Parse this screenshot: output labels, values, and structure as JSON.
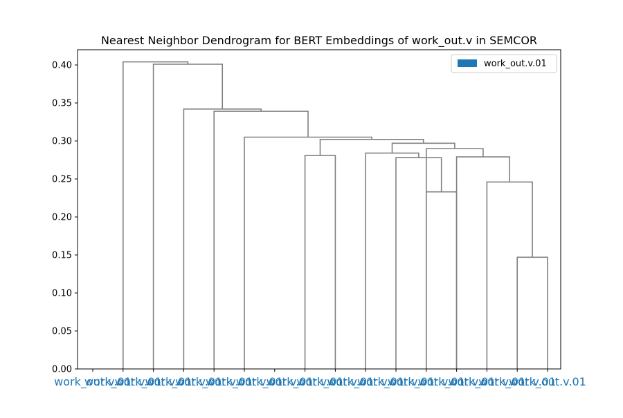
{
  "chart_data": {
    "type": "dendrogram",
    "title": "Nearest Neighbor Dendrogram for BERT Embeddings of work_out.v in SEMCOR",
    "xlabel": "",
    "ylabel": "",
    "ylim": [
      0,
      0.42
    ],
    "yticks": [
      0.0,
      0.05,
      0.1,
      0.15,
      0.2,
      0.25,
      0.3,
      0.35,
      0.4
    ],
    "ytick_labels": [
      "0.00",
      "0.05",
      "0.10",
      "0.15",
      "0.20",
      "0.25",
      "0.30",
      "0.35",
      "0.40"
    ],
    "legend": {
      "position": "top-right",
      "entries": [
        {
          "label": "work_out.v.01",
          "color": "#1f77b4"
        }
      ]
    },
    "leaf_label_color": "#1f77b4",
    "link_color": "#808080",
    "leaves": [
      "work_out.v.01",
      "work_out.v.01",
      "work_out.v.01",
      "work_out.v.01",
      "work_out.v.01",
      "work_out.v.01",
      "work_out.v.01",
      "work_out.v.01",
      "work_out.v.01",
      "work_out.v.01",
      "work_out.v.01",
      "work_out.v.01",
      "work_out.v.01",
      "work_out.v.01",
      "work_out.v.01",
      "work_out.v.01"
    ],
    "merges": [
      {
        "left": 14,
        "right": 15,
        "height": 0.147
      },
      {
        "left": 11,
        "right": 12,
        "height": 0.233
      },
      {
        "left": 13,
        "right": "m0",
        "height": 0.246
      },
      {
        "left": 12,
        "right": "m2",
        "height": 0.279
      },
      {
        "left": 10,
        "right": "m1",
        "height": 0.278
      },
      {
        "left": 7,
        "right": 8,
        "height": 0.281
      },
      {
        "left": 9,
        "right": "m4",
        "height": 0.284
      },
      {
        "left": 11,
        "right": "m3",
        "height": 0.29
      },
      {
        "left": "m6",
        "right": "m7",
        "height": 0.297
      },
      {
        "left": "m5",
        "right": "m8",
        "height": 0.302
      },
      {
        "left": 5,
        "right": "m9",
        "height": 0.305
      },
      {
        "left": 4,
        "right": "m10",
        "height": 0.339
      },
      {
        "left": 3,
        "right": "m11",
        "height": 0.342
      },
      {
        "left": 2,
        "right": "m12",
        "height": 0.401
      },
      {
        "left": 1,
        "right": "m13",
        "height": 0.404
      }
    ]
  }
}
